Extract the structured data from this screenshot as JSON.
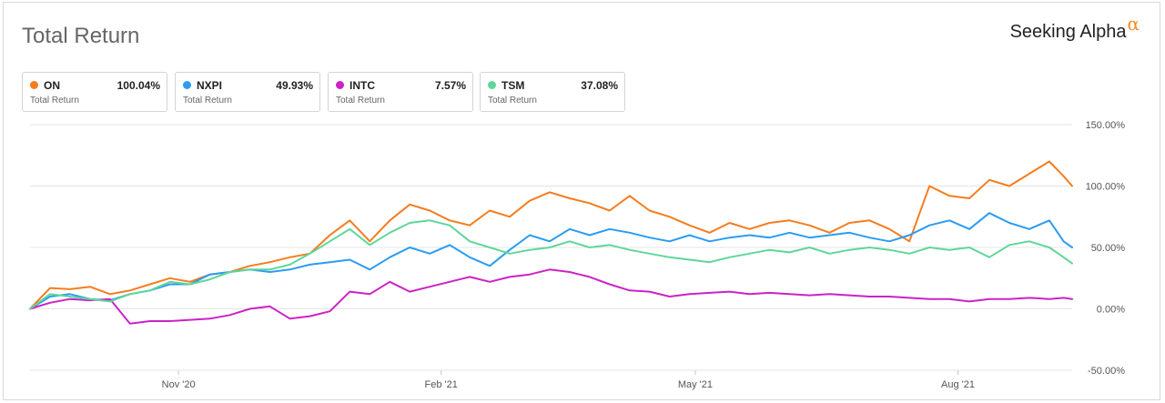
{
  "header": {
    "title": "Total Return",
    "brand": "Seeking Alpha",
    "brand_mark": "α"
  },
  "legend": [
    {
      "ticker": "ON",
      "value": "100.04%",
      "sub": "Total Return",
      "color": "#f57c1f"
    },
    {
      "ticker": "NXPI",
      "value": "49.93%",
      "sub": "Total Return",
      "color": "#2b9cf2"
    },
    {
      "ticker": "INTC",
      "value": "7.57%",
      "sub": "Total Return",
      "color": "#cc22c7"
    },
    {
      "ticker": "TSM",
      "value": "37.08%",
      "sub": "Total Return",
      "color": "#5fd69a"
    }
  ],
  "chart_data": {
    "type": "line",
    "title": "Total Return",
    "xlabel": "",
    "ylabel": "",
    "ylim": [
      -50,
      150
    ],
    "y_ticks": [
      150,
      100,
      50,
      0,
      -50
    ],
    "y_tick_labels": [
      "150.00%",
      "100.00%",
      "50.00%",
      "0.00%",
      "-50.00%"
    ],
    "x_ticks": [
      "2020-11-01",
      "2021-02-01",
      "2021-05-01",
      "2021-08-01"
    ],
    "x_tick_labels": [
      "Nov '20",
      "Feb '21",
      "May '21",
      "Aug '21"
    ],
    "x_range": [
      "2020-09-10",
      "2021-09-10"
    ],
    "grid": true,
    "series": [
      {
        "name": "ON",
        "color": "#f57c1f",
        "points": [
          [
            "2020-09-10",
            0
          ],
          [
            "2020-09-17",
            17
          ],
          [
            "2020-09-24",
            16
          ],
          [
            "2020-10-01",
            18
          ],
          [
            "2020-10-08",
            12
          ],
          [
            "2020-10-15",
            15
          ],
          [
            "2020-10-22",
            20
          ],
          [
            "2020-10-29",
            25
          ],
          [
            "2020-11-05",
            22
          ],
          [
            "2020-11-12",
            28
          ],
          [
            "2020-11-19",
            30
          ],
          [
            "2020-11-26",
            35
          ],
          [
            "2020-12-03",
            38
          ],
          [
            "2020-12-10",
            42
          ],
          [
            "2020-12-17",
            45
          ],
          [
            "2020-12-24",
            60
          ],
          [
            "2020-12-31",
            72
          ],
          [
            "2021-01-07",
            55
          ],
          [
            "2021-01-14",
            72
          ],
          [
            "2021-01-21",
            85
          ],
          [
            "2021-01-28",
            80
          ],
          [
            "2021-02-04",
            72
          ],
          [
            "2021-02-11",
            68
          ],
          [
            "2021-02-18",
            80
          ],
          [
            "2021-02-25",
            75
          ],
          [
            "2021-03-04",
            88
          ],
          [
            "2021-03-11",
            95
          ],
          [
            "2021-03-18",
            90
          ],
          [
            "2021-03-25",
            86
          ],
          [
            "2021-04-01",
            80
          ],
          [
            "2021-04-08",
            92
          ],
          [
            "2021-04-15",
            80
          ],
          [
            "2021-04-22",
            75
          ],
          [
            "2021-04-29",
            68
          ],
          [
            "2021-05-06",
            62
          ],
          [
            "2021-05-13",
            70
          ],
          [
            "2021-05-20",
            65
          ],
          [
            "2021-05-27",
            70
          ],
          [
            "2021-06-03",
            72
          ],
          [
            "2021-06-10",
            68
          ],
          [
            "2021-06-17",
            62
          ],
          [
            "2021-06-24",
            70
          ],
          [
            "2021-07-01",
            72
          ],
          [
            "2021-07-08",
            65
          ],
          [
            "2021-07-15",
            55
          ],
          [
            "2021-07-22",
            100
          ],
          [
            "2021-07-29",
            92
          ],
          [
            "2021-08-05",
            90
          ],
          [
            "2021-08-12",
            105
          ],
          [
            "2021-08-19",
            100
          ],
          [
            "2021-08-26",
            110
          ],
          [
            "2021-09-02",
            120
          ],
          [
            "2021-09-07",
            108
          ],
          [
            "2021-09-10",
            100
          ]
        ]
      },
      {
        "name": "NXPI",
        "color": "#2b9cf2",
        "points": [
          [
            "2020-09-10",
            0
          ],
          [
            "2020-09-17",
            10
          ],
          [
            "2020-09-24",
            12
          ],
          [
            "2020-10-01",
            8
          ],
          [
            "2020-10-08",
            7
          ],
          [
            "2020-10-15",
            12
          ],
          [
            "2020-10-22",
            15
          ],
          [
            "2020-10-29",
            20
          ],
          [
            "2020-11-05",
            20
          ],
          [
            "2020-11-12",
            28
          ],
          [
            "2020-11-19",
            30
          ],
          [
            "2020-11-26",
            32
          ],
          [
            "2020-12-03",
            30
          ],
          [
            "2020-12-10",
            32
          ],
          [
            "2020-12-17",
            36
          ],
          [
            "2020-12-24",
            38
          ],
          [
            "2020-12-31",
            40
          ],
          [
            "2021-01-07",
            32
          ],
          [
            "2021-01-14",
            42
          ],
          [
            "2021-01-21",
            50
          ],
          [
            "2021-01-28",
            45
          ],
          [
            "2021-02-04",
            52
          ],
          [
            "2021-02-11",
            42
          ],
          [
            "2021-02-18",
            35
          ],
          [
            "2021-02-25",
            48
          ],
          [
            "2021-03-04",
            60
          ],
          [
            "2021-03-11",
            55
          ],
          [
            "2021-03-18",
            65
          ],
          [
            "2021-03-25",
            60
          ],
          [
            "2021-04-01",
            65
          ],
          [
            "2021-04-08",
            62
          ],
          [
            "2021-04-15",
            58
          ],
          [
            "2021-04-22",
            55
          ],
          [
            "2021-04-29",
            60
          ],
          [
            "2021-05-06",
            55
          ],
          [
            "2021-05-13",
            58
          ],
          [
            "2021-05-20",
            60
          ],
          [
            "2021-05-27",
            58
          ],
          [
            "2021-06-03",
            62
          ],
          [
            "2021-06-10",
            58
          ],
          [
            "2021-06-17",
            60
          ],
          [
            "2021-06-24",
            62
          ],
          [
            "2021-07-01",
            58
          ],
          [
            "2021-07-08",
            55
          ],
          [
            "2021-07-15",
            60
          ],
          [
            "2021-07-22",
            68
          ],
          [
            "2021-07-29",
            72
          ],
          [
            "2021-08-05",
            65
          ],
          [
            "2021-08-12",
            78
          ],
          [
            "2021-08-19",
            70
          ],
          [
            "2021-08-26",
            65
          ],
          [
            "2021-09-02",
            72
          ],
          [
            "2021-09-07",
            55
          ],
          [
            "2021-09-10",
            50
          ]
        ]
      },
      {
        "name": "INTC",
        "color": "#cc22c7",
        "points": [
          [
            "2020-09-10",
            0
          ],
          [
            "2020-09-17",
            5
          ],
          [
            "2020-09-24",
            8
          ],
          [
            "2020-10-01",
            7
          ],
          [
            "2020-10-08",
            8
          ],
          [
            "2020-10-15",
            -12
          ],
          [
            "2020-10-22",
            -10
          ],
          [
            "2020-10-29",
            -10
          ],
          [
            "2020-11-05",
            -9
          ],
          [
            "2020-11-12",
            -8
          ],
          [
            "2020-11-19",
            -5
          ],
          [
            "2020-11-26",
            0
          ],
          [
            "2020-12-03",
            2
          ],
          [
            "2020-12-10",
            -8
          ],
          [
            "2020-12-17",
            -6
          ],
          [
            "2020-12-24",
            -2
          ],
          [
            "2020-12-31",
            14
          ],
          [
            "2021-01-07",
            12
          ],
          [
            "2021-01-14",
            22
          ],
          [
            "2021-01-21",
            14
          ],
          [
            "2021-01-28",
            18
          ],
          [
            "2021-02-04",
            22
          ],
          [
            "2021-02-11",
            26
          ],
          [
            "2021-02-18",
            22
          ],
          [
            "2021-02-25",
            26
          ],
          [
            "2021-03-04",
            28
          ],
          [
            "2021-03-11",
            32
          ],
          [
            "2021-03-18",
            30
          ],
          [
            "2021-03-25",
            26
          ],
          [
            "2021-04-01",
            20
          ],
          [
            "2021-04-08",
            15
          ],
          [
            "2021-04-15",
            14
          ],
          [
            "2021-04-22",
            10
          ],
          [
            "2021-04-29",
            12
          ],
          [
            "2021-05-06",
            13
          ],
          [
            "2021-05-13",
            14
          ],
          [
            "2021-05-20",
            12
          ],
          [
            "2021-05-27",
            13
          ],
          [
            "2021-06-03",
            12
          ],
          [
            "2021-06-10",
            11
          ],
          [
            "2021-06-17",
            12
          ],
          [
            "2021-06-24",
            11
          ],
          [
            "2021-07-01",
            10
          ],
          [
            "2021-07-08",
            10
          ],
          [
            "2021-07-15",
            9
          ],
          [
            "2021-07-22",
            8
          ],
          [
            "2021-07-29",
            8
          ],
          [
            "2021-08-05",
            6
          ],
          [
            "2021-08-12",
            8
          ],
          [
            "2021-08-19",
            8
          ],
          [
            "2021-08-26",
            9
          ],
          [
            "2021-09-02",
            8
          ],
          [
            "2021-09-07",
            9
          ],
          [
            "2021-09-10",
            8
          ]
        ]
      },
      {
        "name": "TSM",
        "color": "#5fd69a",
        "points": [
          [
            "2020-09-10",
            0
          ],
          [
            "2020-09-17",
            12
          ],
          [
            "2020-09-24",
            10
          ],
          [
            "2020-10-01",
            8
          ],
          [
            "2020-10-08",
            6
          ],
          [
            "2020-10-15",
            12
          ],
          [
            "2020-10-22",
            15
          ],
          [
            "2020-10-29",
            22
          ],
          [
            "2020-11-05",
            20
          ],
          [
            "2020-11-12",
            24
          ],
          [
            "2020-11-19",
            30
          ],
          [
            "2020-11-26",
            32
          ],
          [
            "2020-12-03",
            32
          ],
          [
            "2020-12-10",
            36
          ],
          [
            "2020-12-17",
            45
          ],
          [
            "2020-12-24",
            55
          ],
          [
            "2020-12-31",
            65
          ],
          [
            "2021-01-07",
            52
          ],
          [
            "2021-01-14",
            62
          ],
          [
            "2021-01-21",
            70
          ],
          [
            "2021-01-28",
            72
          ],
          [
            "2021-02-04",
            68
          ],
          [
            "2021-02-11",
            55
          ],
          [
            "2021-02-18",
            50
          ],
          [
            "2021-02-25",
            45
          ],
          [
            "2021-03-04",
            48
          ],
          [
            "2021-03-11",
            50
          ],
          [
            "2021-03-18",
            55
          ],
          [
            "2021-03-25",
            50
          ],
          [
            "2021-04-01",
            52
          ],
          [
            "2021-04-08",
            48
          ],
          [
            "2021-04-15",
            45
          ],
          [
            "2021-04-22",
            42
          ],
          [
            "2021-04-29",
            40
          ],
          [
            "2021-05-06",
            38
          ],
          [
            "2021-05-13",
            42
          ],
          [
            "2021-05-20",
            45
          ],
          [
            "2021-05-27",
            48
          ],
          [
            "2021-06-03",
            46
          ],
          [
            "2021-06-10",
            50
          ],
          [
            "2021-06-17",
            45
          ],
          [
            "2021-06-24",
            48
          ],
          [
            "2021-07-01",
            50
          ],
          [
            "2021-07-08",
            48
          ],
          [
            "2021-07-15",
            45
          ],
          [
            "2021-07-22",
            50
          ],
          [
            "2021-07-29",
            48
          ],
          [
            "2021-08-05",
            50
          ],
          [
            "2021-08-12",
            42
          ],
          [
            "2021-08-19",
            52
          ],
          [
            "2021-08-26",
            55
          ],
          [
            "2021-09-02",
            50
          ],
          [
            "2021-09-07",
            42
          ],
          [
            "2021-09-10",
            37
          ]
        ]
      }
    ]
  }
}
